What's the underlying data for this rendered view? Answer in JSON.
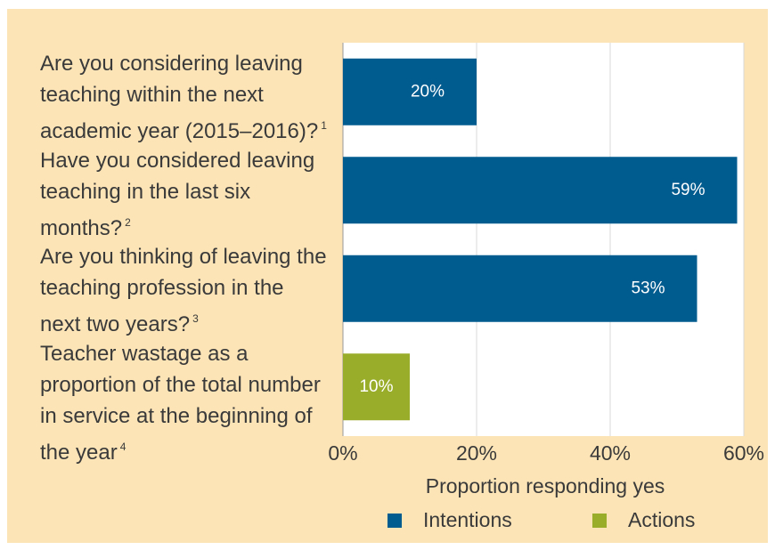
{
  "chart_data": {
    "type": "hbar",
    "categories": [
      "Are you considering leaving teaching within the next academic year (2015–2016)?",
      "Have you considered leaving teaching in the last six months?",
      "Are you thinking of leaving the teaching profession in the next two years?",
      "Teacher wastage as a proportion of the total number in service at the beginning of the year"
    ],
    "category_notes": [
      "1",
      "2",
      "3",
      "4"
    ],
    "series": [
      {
        "name": "Intentions",
        "color": "#005b8f",
        "values": [
          20,
          59,
          53,
          null
        ],
        "value_labels": [
          "20%",
          "59%",
          "53%",
          null
        ]
      },
      {
        "name": "Actions",
        "color": "#9aad2a",
        "values": [
          null,
          null,
          null,
          10
        ],
        "value_labels": [
          null,
          null,
          null,
          "10%"
        ]
      }
    ],
    "xlabel": "Proportion responding yes",
    "xlim": [
      0,
      60
    ],
    "xticks": [
      {
        "value": 0,
        "label": "0%"
      },
      {
        "value": 20,
        "label": "20%"
      },
      {
        "value": 40,
        "label": "40%"
      },
      {
        "value": 60,
        "label": "60%"
      }
    ],
    "grid": true
  }
}
